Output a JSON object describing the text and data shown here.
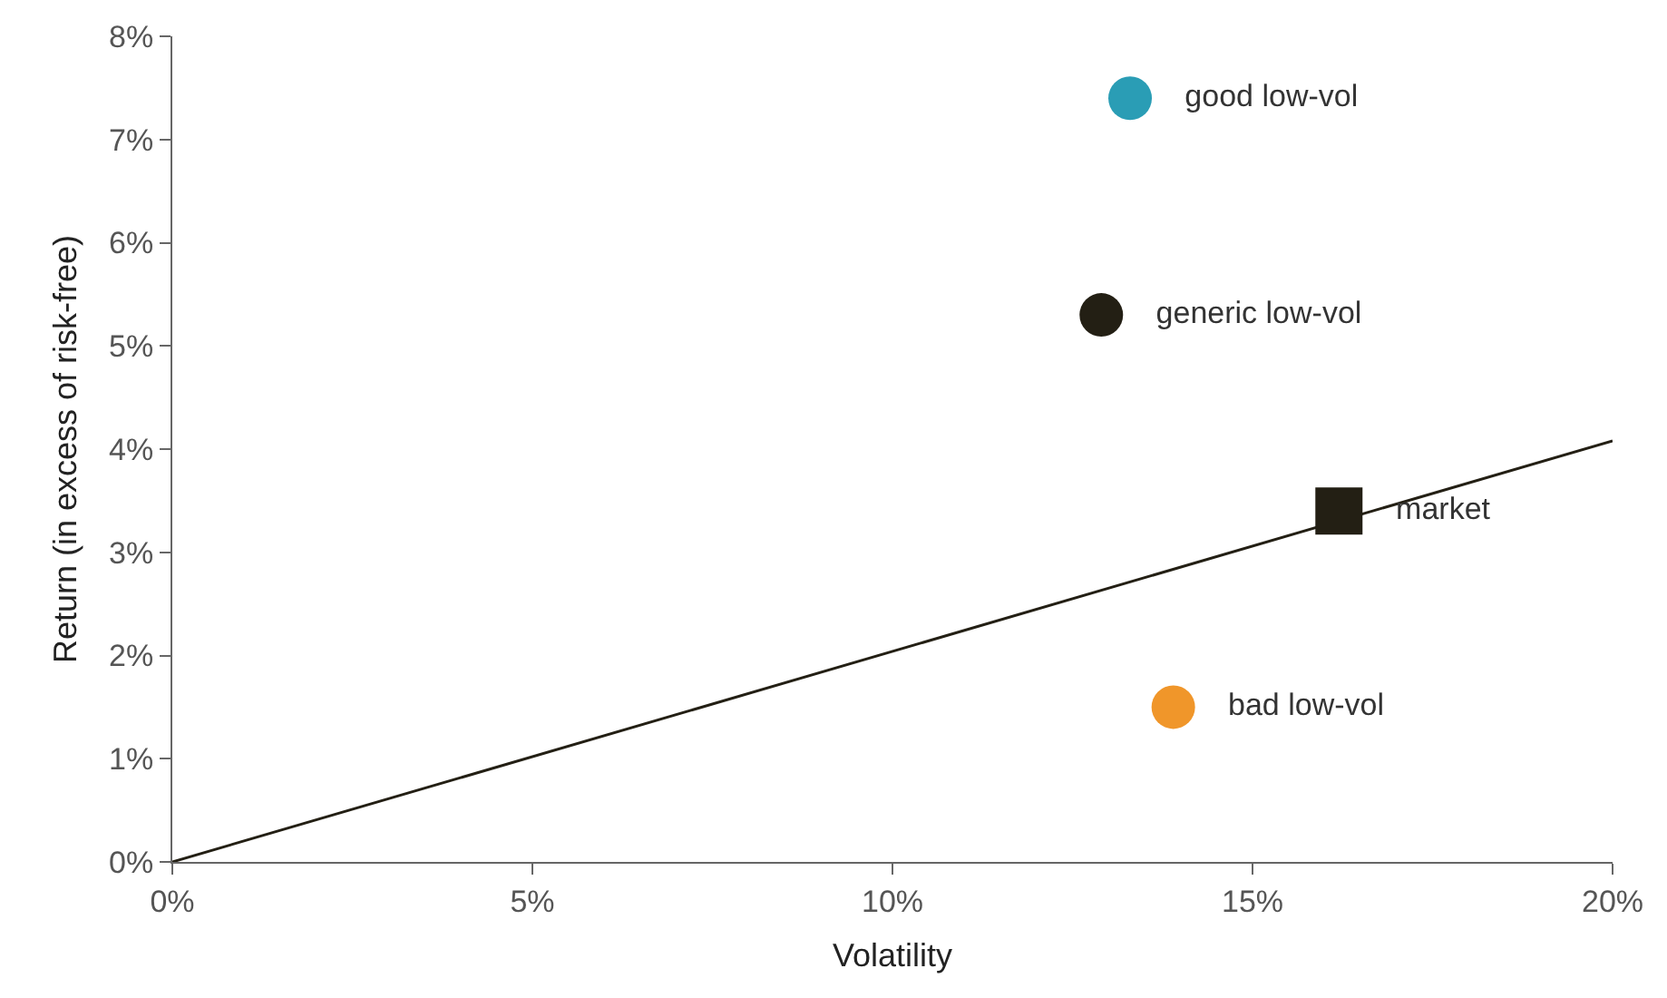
{
  "chart_data": {
    "type": "scatter",
    "xlabel": "Volatility",
    "ylabel": "Return (in excess of risk-free)",
    "xlim": [
      0,
      20
    ],
    "ylim": [
      0,
      8
    ],
    "xticks": [
      {
        "value": 0,
        "label": "0%"
      },
      {
        "value": 5,
        "label": "5%"
      },
      {
        "value": 10,
        "label": "10%"
      },
      {
        "value": 15,
        "label": "15%"
      },
      {
        "value": 20,
        "label": "20%"
      }
    ],
    "yticks": [
      {
        "value": 0,
        "label": "0%"
      },
      {
        "value": 1,
        "label": "1%"
      },
      {
        "value": 2,
        "label": "2%"
      },
      {
        "value": 3,
        "label": "3%"
      },
      {
        "value": 4,
        "label": "4%"
      },
      {
        "value": 5,
        "label": "5%"
      },
      {
        "value": 6,
        "label": "6%"
      },
      {
        "value": 7,
        "label": "7%"
      },
      {
        "value": 8,
        "label": "8%"
      }
    ],
    "grid": false,
    "legend": false,
    "series": [
      {
        "type": "line",
        "color": "#231f14",
        "x": [
          0,
          20
        ],
        "values": [
          0,
          4.08
        ],
        "marker": "none",
        "line_style": "solid"
      },
      {
        "name": "good low-vol",
        "color": "#2a9db5",
        "x": [
          13.3
        ],
        "values": [
          7.4
        ],
        "marker": "circle"
      },
      {
        "name": "generic low-vol",
        "color": "#231f14",
        "x": [
          12.9
        ],
        "values": [
          5.3
        ],
        "marker": "circle"
      },
      {
        "name": "market",
        "color": "#231f14",
        "x": [
          16.2
        ],
        "values": [
          3.4
        ],
        "marker": "square"
      },
      {
        "name": "bad low-vol",
        "color": "#f0962a",
        "x": [
          13.9
        ],
        "values": [
          1.5
        ],
        "marker": "circle"
      }
    ]
  }
}
